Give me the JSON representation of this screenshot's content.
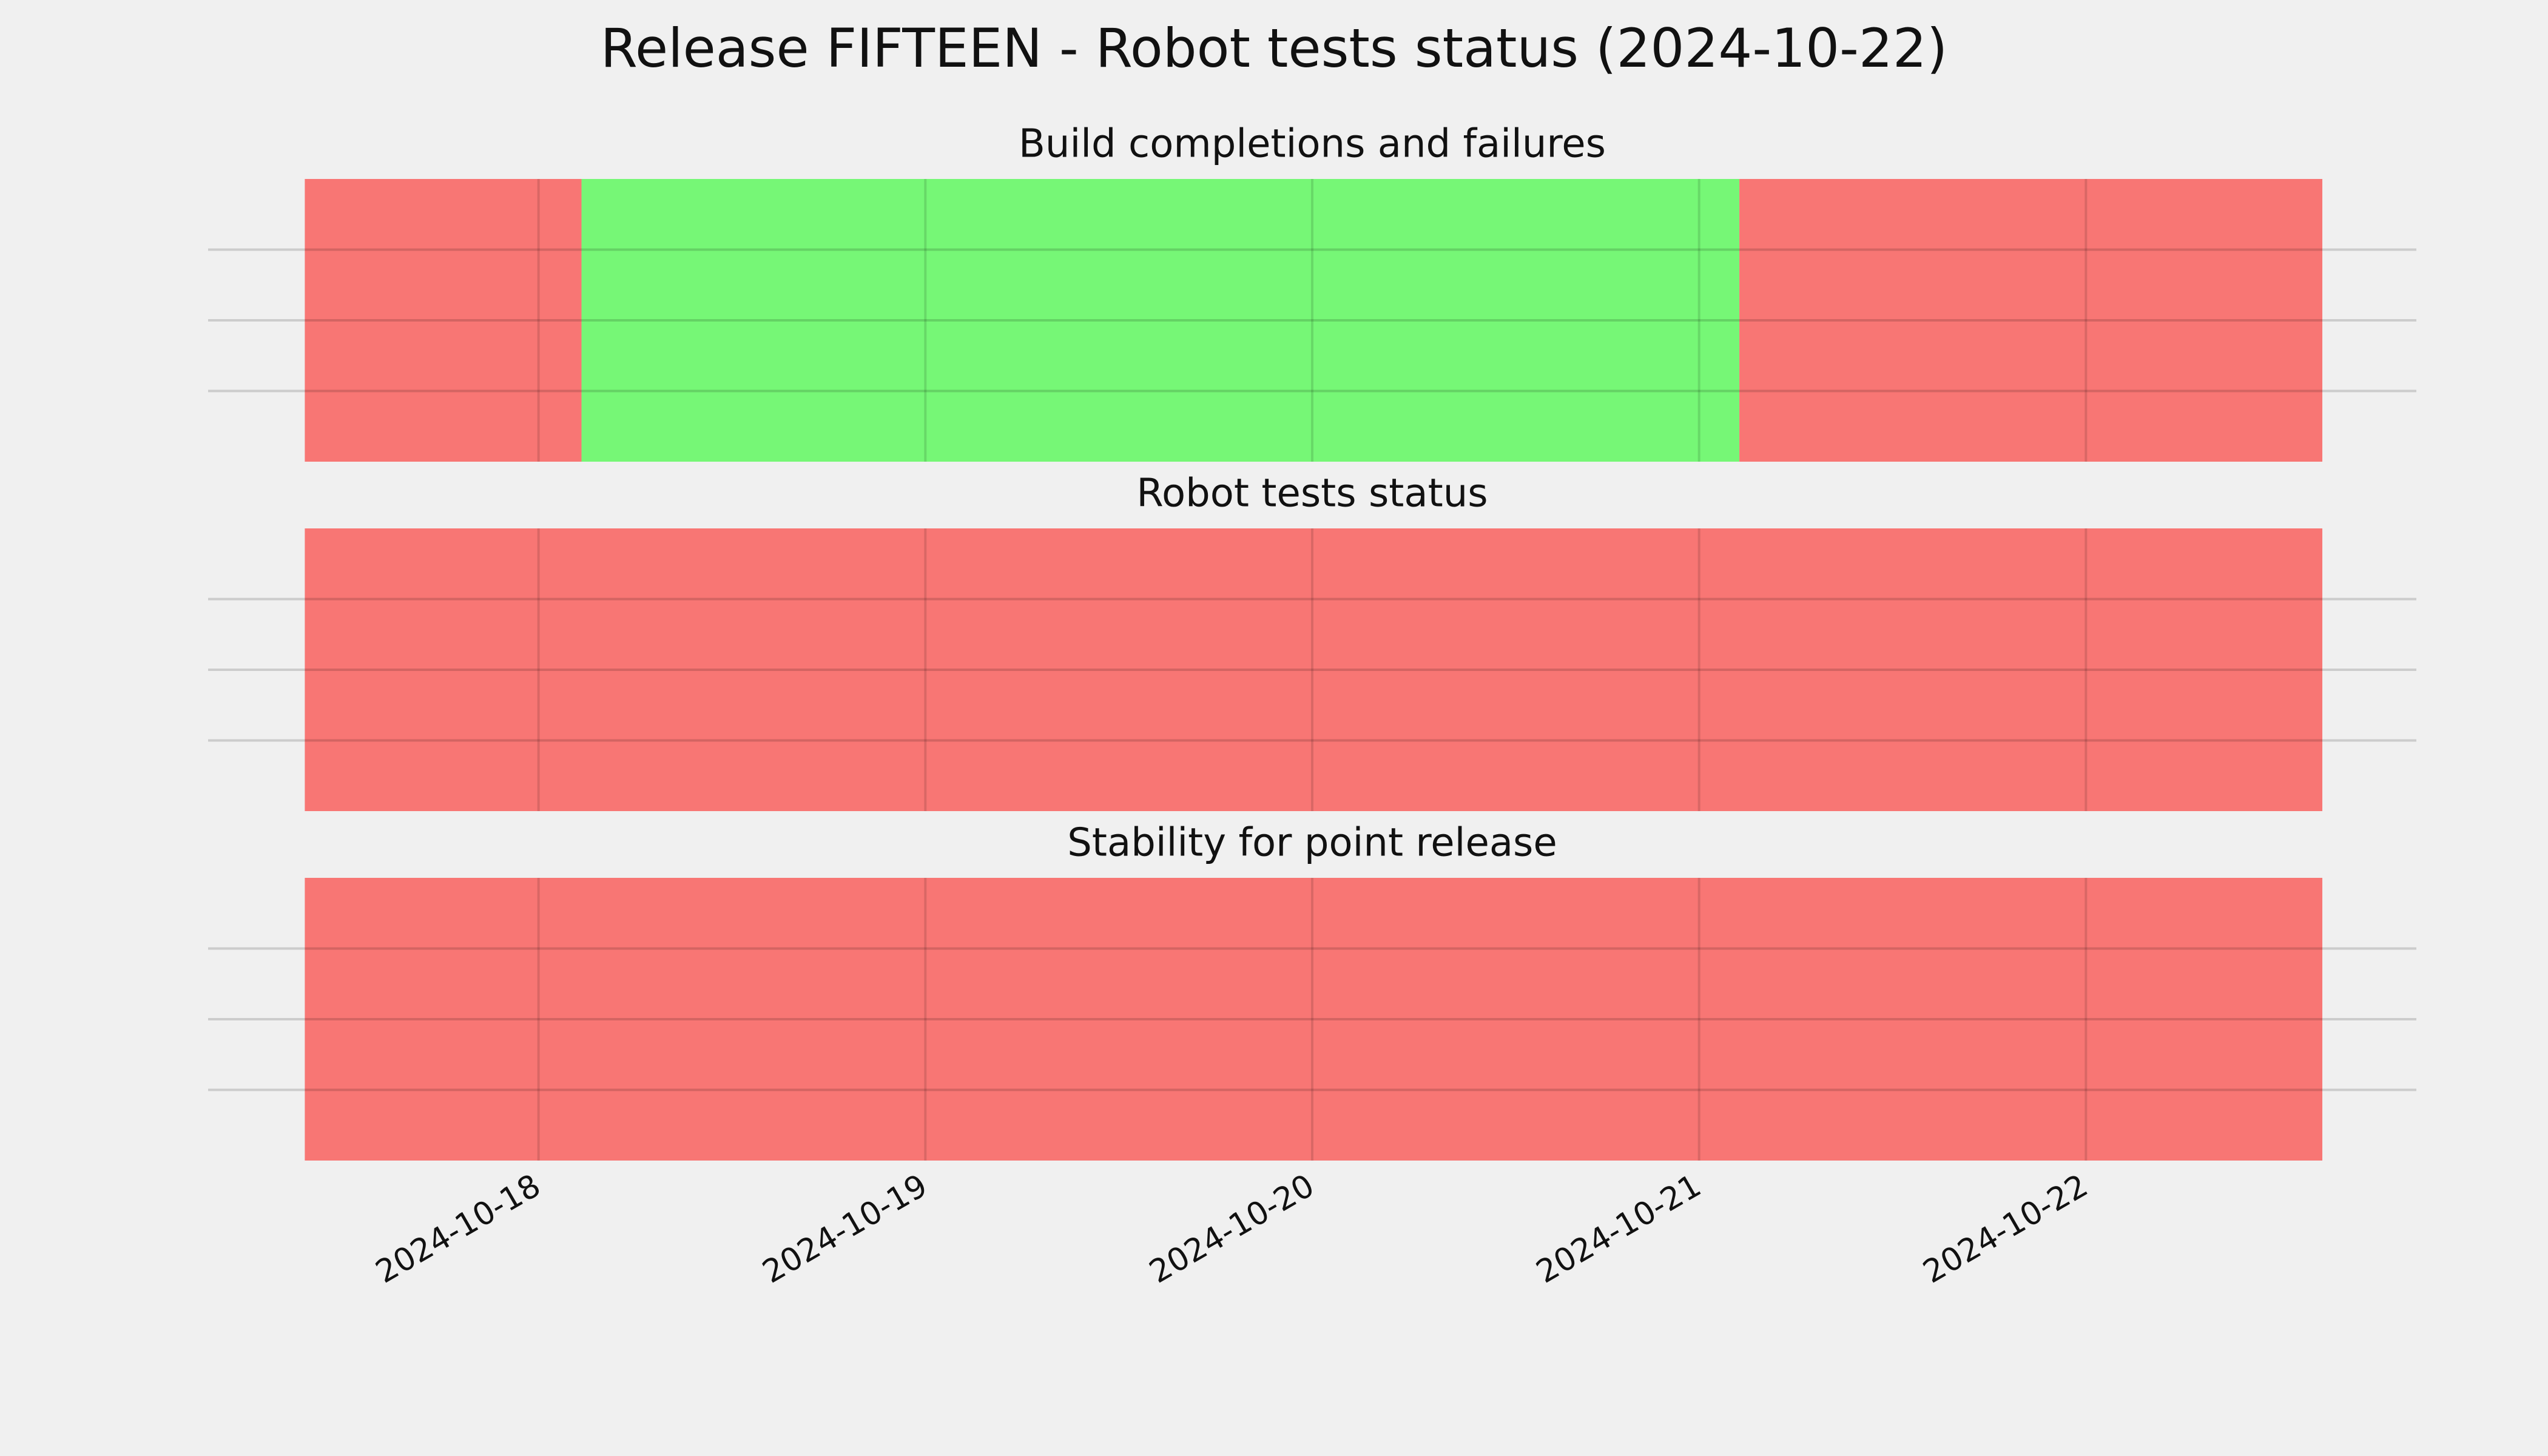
{
  "title": "Release FIFTEEN - Robot tests status (2024-10-22)",
  "chart_data": [
    {
      "type": "timeline",
      "title": "Build completions and failures",
      "spans": [
        {
          "start": "2024-10-17T09:30",
          "end": "2024-10-18T02:40",
          "color": "#f87674"
        },
        {
          "start": "2024-10-18T02:40",
          "end": "2024-10-21T02:30",
          "color": "#76f776"
        },
        {
          "start": "2024-10-21T02:30",
          "end": "2024-10-22T14:40",
          "color": "#f87674"
        }
      ],
      "xlim": [
        "2024-10-17T03:30",
        "2024-10-22T20:30"
      ],
      "xticks": [
        "2024-10-18",
        "2024-10-19",
        "2024-10-20",
        "2024-10-21",
        "2024-10-22"
      ],
      "ylim": [
        0,
        1
      ],
      "yticks": [
        0.25,
        0.5,
        0.75
      ],
      "grid": true
    },
    {
      "type": "timeline",
      "title": "Robot tests status",
      "spans": [
        {
          "start": "2024-10-17T09:30",
          "end": "2024-10-22T14:40",
          "color": "#f87674"
        }
      ],
      "xlim": [
        "2024-10-17T03:30",
        "2024-10-22T20:30"
      ],
      "xticks": [
        "2024-10-18",
        "2024-10-19",
        "2024-10-20",
        "2024-10-21",
        "2024-10-22"
      ],
      "ylim": [
        0,
        1
      ],
      "yticks": [
        0.25,
        0.5,
        0.75
      ],
      "grid": true
    },
    {
      "type": "timeline",
      "title": "Stability for point release",
      "spans": [
        {
          "start": "2024-10-17T09:30",
          "end": "2024-10-22T14:40",
          "color": "#f87674"
        }
      ],
      "xlim": [
        "2024-10-17T03:30",
        "2024-10-22T20:30"
      ],
      "xticks": [
        "2024-10-18",
        "2024-10-19",
        "2024-10-20",
        "2024-10-21",
        "2024-10-22"
      ],
      "ylim": [
        0,
        1
      ],
      "yticks": [
        0.25,
        0.5,
        0.75
      ],
      "grid": true,
      "show_xtick_labels": true
    }
  ]
}
